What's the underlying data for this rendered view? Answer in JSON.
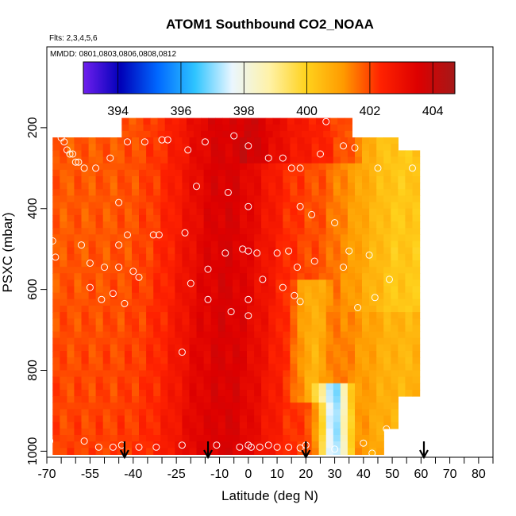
{
  "chart_data": {
    "type": "heatmap",
    "title": "ATOM1 Southbound CO2_NOAA",
    "note_flights": "Flts: 2,3,4,5,6",
    "note_dates": "MMDD: 0801,0803,0806,0808,0812",
    "xlabel": "Latitude (deg N)",
    "ylabel": "PSXC (mbar)",
    "xlim": [
      -70,
      85
    ],
    "ylim": [
      1015,
      0
    ],
    "x_tick_values": [
      -70,
      -55,
      -40,
      -25,
      -10,
      0,
      10,
      20,
      30,
      40,
      50,
      60,
      70,
      80
    ],
    "x_tick_labels": [
      "-70",
      "-55",
      "-40",
      "-25",
      "-10",
      "0",
      "10",
      "20",
      "30",
      "40",
      "50",
      "60",
      "70",
      "80"
    ],
    "y_tick_values": [
      200,
      400,
      600,
      800,
      1000
    ],
    "y_tick_labels": [
      "200",
      "400",
      "600",
      "800",
      "1000"
    ],
    "colorbar": {
      "min": 392.9,
      "max": 404.7,
      "tick_values": [
        394,
        396,
        398,
        400,
        402,
        404
      ],
      "tick_labels": [
        "394",
        "396",
        "398",
        "400",
        "402",
        "404"
      ],
      "colors": [
        "#6f1fee",
        "#0000b8",
        "#0068ff",
        "#2ec4ff",
        "#eaf6ff",
        "#fff2a8",
        "#ffd21c",
        "#ff9a00",
        "#ff2200",
        "#dd0000",
        "#a51818"
      ]
    },
    "arrow_latitudes": [
      -43,
      -14,
      20,
      61
    ],
    "point_color": "#ffffff",
    "samples": [
      [
        -65,
        225
      ],
      [
        -64,
        235
      ],
      [
        -63,
        255
      ],
      [
        -62,
        265
      ],
      [
        -61,
        265
      ],
      [
        -60,
        285
      ],
      [
        -59,
        285
      ],
      [
        -57,
        300
      ],
      [
        -53,
        300
      ],
      [
        -48,
        275
      ],
      [
        -42,
        235
      ],
      [
        -36,
        235
      ],
      [
        -30,
        230
      ],
      [
        -28,
        230
      ],
      [
        -21,
        255
      ],
      [
        -15,
        235
      ],
      [
        -5,
        220
      ],
      [
        0,
        245
      ],
      [
        7,
        275
      ],
      [
        12,
        275
      ],
      [
        15,
        300
      ],
      [
        18,
        300
      ],
      [
        25,
        265
      ],
      [
        27,
        185
      ],
      [
        33,
        245
      ],
      [
        37,
        250
      ],
      [
        45,
        300
      ],
      [
        57,
        300
      ],
      [
        -18,
        345
      ],
      [
        -7,
        360
      ],
      [
        0,
        395
      ],
      [
        -45,
        385
      ],
      [
        18,
        395
      ],
      [
        22,
        415
      ],
      [
        30,
        435
      ],
      [
        -42,
        465
      ],
      [
        -33,
        465
      ],
      [
        -31,
        465
      ],
      [
        -22,
        460
      ],
      [
        -45,
        490
      ],
      [
        -58,
        490
      ],
      [
        -68,
        480
      ],
      [
        -67,
        520
      ],
      [
        -55,
        535
      ],
      [
        -50,
        545
      ],
      [
        -45,
        545
      ],
      [
        -40,
        555
      ],
      [
        -38,
        570
      ],
      [
        -14,
        550
      ],
      [
        -8,
        510
      ],
      [
        -2,
        500
      ],
      [
        0,
        505
      ],
      [
        3,
        510
      ],
      [
        10,
        510
      ],
      [
        14,
        505
      ],
      [
        17,
        545
      ],
      [
        23,
        530
      ],
      [
        33,
        545
      ],
      [
        35,
        505
      ],
      [
        42,
        515
      ],
      [
        -55,
        595
      ],
      [
        -51,
        625
      ],
      [
        -47,
        610
      ],
      [
        -43,
        635
      ],
      [
        -20,
        585
      ],
      [
        -14,
        625
      ],
      [
        -6,
        655
      ],
      [
        0,
        625
      ],
      [
        0,
        665
      ],
      [
        5,
        575
      ],
      [
        12,
        595
      ],
      [
        16,
        615
      ],
      [
        18,
        630
      ],
      [
        38,
        645
      ],
      [
        44,
        620
      ],
      [
        49,
        575
      ],
      [
        -23,
        755
      ],
      [
        -69,
        975
      ],
      [
        -57,
        975
      ],
      [
        -52,
        990
      ],
      [
        -47,
        990
      ],
      [
        -44,
        985
      ],
      [
        -38,
        990
      ],
      [
        -32,
        990
      ],
      [
        -23,
        985
      ],
      [
        -11,
        985
      ],
      [
        -3,
        990
      ],
      [
        0,
        985
      ],
      [
        1,
        990
      ],
      [
        4,
        990
      ],
      [
        7,
        985
      ],
      [
        10,
        990
      ],
      [
        14,
        990
      ],
      [
        18,
        992
      ],
      [
        20,
        985
      ],
      [
        30,
        995
      ],
      [
        40,
        980
      ],
      [
        43,
        1005
      ],
      [
        48,
        945
      ],
      [
        57,
        948
      ]
    ],
    "grid": false,
    "legend": "top"
  }
}
